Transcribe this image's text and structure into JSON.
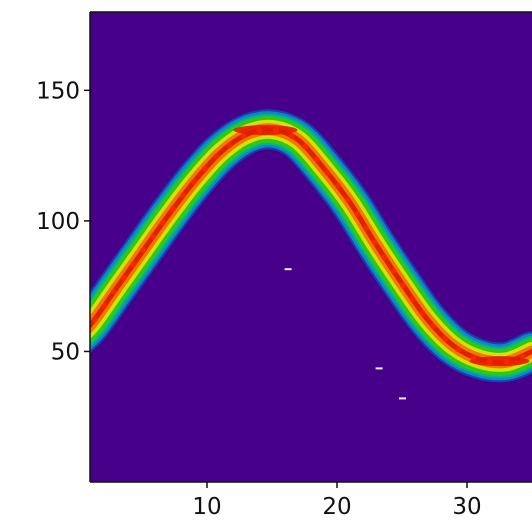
{
  "chart_data": {
    "type": "heatmap",
    "title": "",
    "xlabel": "",
    "ylabel": "",
    "xlim": [
      1,
      35
    ],
    "ylim": [
      0,
      180
    ],
    "x_ticks": [
      10,
      20,
      30
    ],
    "y_ticks": [
      50,
      100,
      150
    ],
    "x_tick_labels": [
      "10",
      "20",
      "30"
    ],
    "y_tick_labels": [
      "50",
      "100",
      "150"
    ],
    "grid": false,
    "colormap": "jet",
    "background_color": "#46008a",
    "band": {
      "shape": "sinusoid",
      "x": [
        1,
        3,
        5,
        7,
        9,
        11,
        13,
        15,
        17,
        19,
        21,
        23,
        25,
        27,
        29,
        31,
        33,
        35
      ],
      "y": [
        60,
        74,
        88,
        102,
        115,
        126,
        133,
        135,
        131,
        120,
        107,
        91,
        76,
        62,
        52,
        47,
        46,
        50
      ]
    },
    "specks": [
      {
        "x": 16.2,
        "y": 81.5
      },
      {
        "x": 23.2,
        "y": 43.5
      },
      {
        "x": 25.0,
        "y": 32.0
      }
    ]
  }
}
